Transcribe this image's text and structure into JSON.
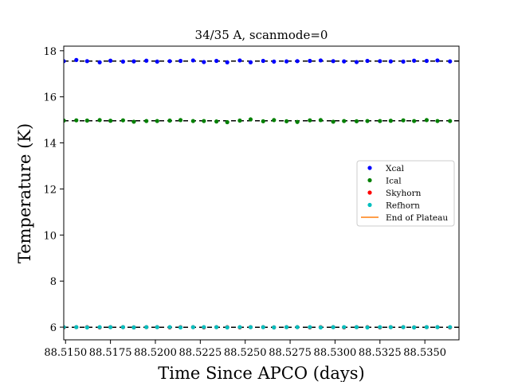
{
  "chart_data": {
    "type": "scatter",
    "title": "34/35 A, scanmode=0",
    "xlabel": "Time Since APCO (days)",
    "ylabel": "Temperature (K)",
    "xlim": [
      88.5149,
      88.5369
    ],
    "ylim": [
      5.45,
      18.2
    ],
    "x_ticks": [
      88.515,
      88.5175,
      88.52,
      88.5225,
      88.525,
      88.5275,
      88.53,
      88.5325,
      88.535
    ],
    "x_tick_labels": [
      "88.5150",
      "88.5175",
      "88.5200",
      "88.5225",
      "88.5250",
      "88.5275",
      "88.5300",
      "88.5325",
      "88.5350"
    ],
    "y_ticks": [
      6,
      8,
      10,
      12,
      14,
      16,
      18
    ],
    "y_tick_labels": [
      "6",
      "8",
      "10",
      "12",
      "14",
      "16",
      "18"
    ],
    "grid": false,
    "legend_position": "center-right",
    "x": [
      88.5149,
      88.5156,
      88.5162,
      88.5169,
      88.5175,
      88.5182,
      88.5188,
      88.5195,
      88.5201,
      88.5208,
      88.5214,
      88.5221,
      88.5227,
      88.5234,
      88.524,
      88.5247,
      88.5253,
      88.526,
      88.5266,
      88.5273,
      88.5279,
      88.5286,
      88.5292,
      88.5299,
      88.5305,
      88.5312,
      88.5318,
      88.5325,
      88.5331,
      88.5338,
      88.5344,
      88.5351,
      88.5357,
      88.5364
    ],
    "series": [
      {
        "name": "Xcal",
        "color": "#0000ff",
        "marker": "dot",
        "values": [
          17.55,
          17.6,
          17.55,
          17.5,
          17.57,
          17.53,
          17.54,
          17.57,
          17.53,
          17.55,
          17.56,
          17.58,
          17.51,
          17.56,
          17.5,
          17.58,
          17.5,
          17.56,
          17.53,
          17.54,
          17.55,
          17.56,
          17.58,
          17.55,
          17.54,
          17.51,
          17.56,
          17.55,
          17.54,
          17.53,
          17.57,
          17.56,
          17.58,
          17.54
        ]
      },
      {
        "name": "Ical",
        "color": "#008000",
        "marker": "dot",
        "values": [
          14.97,
          14.98,
          14.97,
          14.99,
          14.96,
          14.98,
          14.92,
          14.95,
          14.95,
          14.97,
          14.99,
          14.95,
          14.95,
          14.93,
          14.9,
          14.97,
          15.02,
          14.94,
          14.99,
          14.94,
          14.91,
          14.98,
          14.99,
          14.92,
          14.95,
          14.94,
          14.95,
          14.95,
          14.96,
          14.98,
          14.95,
          14.99,
          14.95,
          14.95
        ]
      },
      {
        "name": "Skyhorn",
        "color": "#ff0000",
        "marker": "dot",
        "values": [
          5.99,
          6.0,
          6.0,
          5.99,
          6.0,
          6.0,
          5.99,
          6.0,
          6.0,
          5.99,
          6.0,
          6.0,
          5.99,
          6.0,
          6.0,
          5.99,
          6.0,
          6.0,
          5.99,
          6.0,
          6.0,
          5.99,
          6.0,
          6.0,
          5.99,
          6.0,
          6.0,
          5.99,
          6.0,
          6.0,
          5.99,
          6.0,
          6.0,
          5.99
        ]
      },
      {
        "name": "Refhorn",
        "color": "#00bfbf",
        "marker": "dot",
        "values": [
          6.0,
          6.0,
          5.99,
          6.0,
          6.0,
          6.0,
          5.99,
          6.0,
          6.0,
          6.0,
          5.99,
          6.0,
          6.0,
          6.0,
          5.99,
          6.0,
          6.0,
          6.0,
          5.99,
          6.0,
          6.0,
          6.0,
          5.99,
          6.0,
          6.0,
          6.0,
          5.99,
          6.0,
          6.0,
          6.0,
          5.99,
          6.0,
          6.0,
          6.0
        ]
      },
      {
        "name": "End of Plateau",
        "color": "#ff7f0e",
        "marker": "line",
        "values": []
      }
    ],
    "reference_lines": [
      {
        "y": 17.55,
        "color": "#000000",
        "style": "dashed"
      },
      {
        "y": 14.96,
        "color": "#000000",
        "style": "dashed"
      },
      {
        "y": 5.995,
        "color": "#000000",
        "style": "dashed"
      }
    ]
  }
}
